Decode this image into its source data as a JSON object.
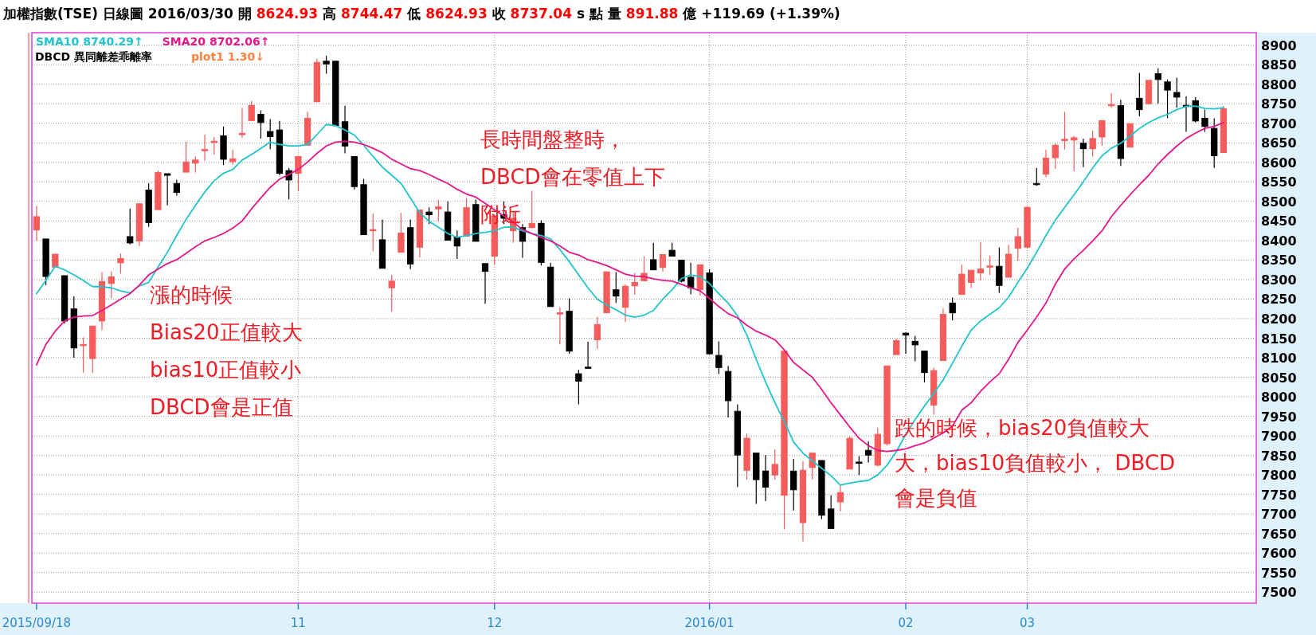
{
  "chart_data": {
    "type": "candlestick",
    "title": "加權指數(TSE) 日線圖 2016/03/30 開 8624.93 高 8744.47 低 8624.93 收 8737.04 s 點 量 891.88 億 +119.69 (+1.39%)",
    "subtitle": "DBCD 異同離差乖離率",
    "annotations": [
      "漲的時候",
      "Bias20正值較大",
      "bias10正值較小",
      "DBCD會是正值",
      "長時間盤整時，",
      "DBCD會在零值上下",
      "附近",
      "跌的時候，bias20負值較大",
      "大，bias10負值較小， DBCD",
      "會是負值",
      "plot1 1.30↓"
    ],
    "categories": [
      "2015/09/18",
      null,
      null,
      null,
      null,
      null,
      null,
      null,
      null,
      null,
      null,
      null,
      null,
      null,
      null,
      null,
      null,
      null,
      null,
      null,
      null,
      null,
      null,
      null,
      null,
      null,
      null,
      null,
      "11",
      null,
      null,
      null,
      null,
      null,
      null,
      null,
      null,
      null,
      null,
      null,
      null,
      null,
      null,
      null,
      null,
      null,
      null,
      null,
      null,
      "12",
      null,
      null,
      null,
      null,
      null,
      null,
      null,
      null,
      null,
      null,
      null,
      null,
      null,
      null,
      null,
      null,
      null,
      null,
      null,
      null,
      null,
      null,
      "2016/01",
      null,
      null,
      null,
      null,
      null,
      null,
      null,
      null,
      null,
      null,
      null,
      null,
      null,
      null,
      null,
      null,
      null,
      null,
      null,
      null,
      "02",
      null,
      null,
      null,
      null,
      null,
      null,
      null,
      null,
      null,
      null,
      null,
      null,
      "03",
      null,
      null,
      null,
      null,
      null,
      null,
      null,
      null,
      null,
      null,
      null,
      null,
      null,
      null,
      null,
      null,
      null,
      null,
      null,
      null,
      null
    ],
    "ohlc": [
      [
        8427,
        8488,
        8399,
        8461
      ],
      [
        8404,
        8404,
        8286,
        8308
      ],
      [
        8332,
        8365,
        8330,
        8365
      ],
      [
        8310,
        8310,
        8187,
        8194
      ],
      [
        8225,
        8257,
        8100,
        8125
      ],
      [
        8132,
        8152,
        8062,
        8134
      ],
      [
        8098,
        8181,
        8061,
        8181
      ],
      [
        8194,
        8319,
        8171,
        8295
      ],
      [
        8290,
        8321,
        8253,
        8307
      ],
      [
        8343,
        8367,
        8315,
        8354
      ],
      [
        8410,
        8482,
        8390,
        8394
      ],
      [
        8399,
        8494,
        8386,
        8494
      ],
      [
        8529,
        8546,
        8435,
        8446
      ],
      [
        8479,
        8579,
        8479,
        8574
      ],
      [
        8571,
        8571,
        8490,
        8567
      ],
      [
        8546,
        8556,
        8515,
        8523
      ],
      [
        8575,
        8652,
        8575,
        8601
      ],
      [
        8598,
        8615,
        8574,
        8606
      ],
      [
        8631,
        8671,
        8604,
        8633
      ],
      [
        8652,
        8665,
        8620,
        8654
      ],
      [
        8668,
        8692,
        8593,
        8608
      ],
      [
        8602,
        8633,
        8594,
        8609
      ],
      [
        8672,
        8740,
        8663,
        8674
      ],
      [
        8707,
        8757,
        8707,
        8746
      ],
      [
        8723,
        8733,
        8661,
        8702
      ],
      [
        8679,
        8711,
        8634,
        8666
      ],
      [
        8683,
        8706,
        8567,
        8572
      ],
      [
        8579,
        8586,
        8505,
        8555
      ],
      [
        8572,
        8615,
        8526,
        8615
      ],
      [
        8644,
        8729,
        8644,
        8713
      ],
      [
        8755,
        8865,
        8755,
        8856
      ],
      [
        8859,
        8873,
        8827,
        8852
      ],
      [
        8859,
        8859,
        8694,
        8694
      ],
      [
        8704,
        8745,
        8623,
        8642
      ],
      [
        8615,
        8615,
        8531,
        8538
      ],
      [
        8543,
        8558,
        8415,
        8415
      ],
      [
        8426,
        8469,
        8373,
        8428
      ],
      [
        8402,
        8454,
        8329,
        8329
      ],
      [
        8279,
        8312,
        8218,
        8296
      ],
      [
        8370,
        8471,
        8370,
        8419
      ],
      [
        8433,
        8454,
        8327,
        8340
      ],
      [
        8383,
        8478,
        8357,
        8478
      ],
      [
        8473,
        8485,
        8442,
        8466
      ],
      [
        8481,
        8504,
        8450,
        8486
      ],
      [
        8473,
        8500,
        8401,
        8401
      ],
      [
        8409,
        8426,
        8353,
        8386
      ],
      [
        8411,
        8509,
        8411,
        8484
      ],
      [
        8492,
        8505,
        8398,
        8398
      ],
      [
        8341,
        8341,
        8238,
        8321
      ],
      [
        8360,
        8463,
        8338,
        8463
      ],
      [
        8466,
        8500,
        8442,
        8457
      ],
      [
        8425,
        8473,
        8394,
        8457
      ],
      [
        8433,
        8442,
        8356,
        8398
      ],
      [
        8433,
        8527,
        8431,
        8444
      ],
      [
        8444,
        8452,
        8336,
        8344
      ],
      [
        8332,
        8343,
        8231,
        8231
      ],
      [
        8213,
        8229,
        8134,
        8215
      ],
      [
        8219,
        8252,
        8110,
        8117
      ],
      [
        8059,
        8069,
        7981,
        8040
      ],
      [
        8076,
        8141,
        8072,
        8074
      ],
      [
        8146,
        8205,
        8123,
        8185
      ],
      [
        8215,
        8320,
        8215,
        8320
      ],
      [
        8274,
        8319,
        8240,
        8258
      ],
      [
        8229,
        8288,
        8192,
        8283
      ],
      [
        8284,
        8317,
        8261,
        8293
      ],
      [
        8297,
        8360,
        8297,
        8316
      ],
      [
        8351,
        8394,
        8325,
        8325
      ],
      [
        8331,
        8364,
        8321,
        8364
      ],
      [
        8375,
        8394,
        8360,
        8360
      ],
      [
        8350,
        8350,
        8293,
        8296
      ],
      [
        8306,
        8343,
        8262,
        8279
      ],
      [
        8274,
        8338,
        8259,
        8338
      ],
      [
        8317,
        8327,
        8108,
        8110
      ],
      [
        8106,
        8142,
        8058,
        8075
      ],
      [
        8065,
        8079,
        7947,
        7990
      ],
      [
        7963,
        7981,
        7769,
        7851
      ],
      [
        7812,
        7906,
        7788,
        7894
      ],
      [
        7856,
        7856,
        7726,
        7788
      ],
      [
        7810,
        7851,
        7733,
        7769
      ],
      [
        7800,
        7865,
        7788,
        7827
      ],
      [
        7748,
        8117,
        7661,
        8117
      ],
      [
        7810,
        7841,
        7709,
        7762
      ],
      [
        7678,
        7835,
        7630,
        7812
      ],
      [
        7819,
        7856,
        7788,
        7856
      ],
      [
        7837,
        7837,
        7687,
        7697
      ],
      [
        7713,
        7748,
        7663,
        7663
      ],
      [
        7731,
        7774,
        7707,
        7755
      ],
      [
        7815,
        7899,
        7815,
        7894
      ],
      [
        7833,
        7848,
        7800,
        7831
      ],
      [
        7863,
        7886,
        7832,
        7851
      ],
      [
        7825,
        7921,
        7822,
        7904
      ],
      [
        7880,
        8079,
        7875,
        8079
      ],
      [
        8108,
        8149,
        8108,
        8144
      ],
      [
        8163,
        8165,
        8110,
        8158
      ],
      [
        8142,
        8156,
        8091,
        8133
      ],
      [
        8117,
        8117,
        8037,
        8062
      ],
      [
        7979,
        8075,
        7954,
        8067
      ],
      [
        8093,
        8226,
        8093,
        8211
      ],
      [
        8240,
        8254,
        8196,
        8215
      ],
      [
        8262,
        8338,
        8262,
        8314
      ],
      [
        8293,
        8324,
        8279,
        8324
      ],
      [
        8317,
        8396,
        8298,
        8327
      ],
      [
        8333,
        8361,
        8312,
        8335
      ],
      [
        8334,
        8382,
        8266,
        8285
      ],
      [
        8306,
        8389,
        8306,
        8365
      ],
      [
        8380,
        8433,
        8348,
        8410
      ],
      [
        8383,
        8488,
        8380,
        8485
      ],
      [
        8546,
        8586,
        8540,
        8544
      ],
      [
        8570,
        8633,
        8562,
        8611
      ],
      [
        8612,
        8649,
        8584,
        8644
      ],
      [
        8658,
        8729,
        8633,
        8659
      ],
      [
        8657,
        8668,
        8577,
        8663
      ],
      [
        8649,
        8661,
        8588,
        8635
      ],
      [
        8635,
        8681,
        8615,
        8661
      ],
      [
        8665,
        8707,
        8642,
        8707
      ],
      [
        8746,
        8777,
        8740,
        8748
      ],
      [
        8745,
        8760,
        8591,
        8610
      ],
      [
        8639,
        8699,
        8639,
        8699
      ],
      [
        8764,
        8829,
        8718,
        8735
      ],
      [
        8750,
        8810,
        8750,
        8810
      ],
      [
        8827,
        8841,
        8750,
        8812
      ],
      [
        8806,
        8812,
        8713,
        8785
      ],
      [
        8779,
        8817,
        8740,
        8767
      ],
      [
        8746,
        8769,
        8678,
        8744
      ],
      [
        8758,
        8767,
        8702,
        8706
      ],
      [
        8713,
        8735,
        8678,
        8692
      ],
      [
        8687,
        8713,
        8586,
        8617
      ],
      [
        8624.93,
        8744.47,
        8624.93,
        8737.04
      ]
    ],
    "colors": [
      "#f45c5c",
      "#000000",
      "#f45c5c",
      "#000000",
      "#000000",
      "#f45c5c",
      "#f45c5c",
      "#f45c5c",
      "#f45c5c",
      "#f45c5c",
      "#000000",
      "#f45c5c",
      "#000000",
      "#f45c5c",
      "#000000",
      "#000000",
      "#f45c5c",
      "#f45c5c",
      "#f45c5c",
      "#f45c5c",
      "#000000",
      "#f45c5c",
      "#f45c5c",
      "#f45c5c",
      "#000000",
      "#000000",
      "#000000",
      "#000000",
      "#f45c5c",
      "#f45c5c",
      "#f45c5c",
      "#000000",
      "#000000",
      "#000000",
      "#000000",
      "#000000",
      "#f45c5c",
      "#000000",
      "#f45c5c",
      "#f45c5c",
      "#000000",
      "#f45c5c",
      "#000000",
      "#f45c5c",
      "#000000",
      "#000000",
      "#f45c5c",
      "#000000",
      "#000000",
      "#f45c5c",
      "#000000",
      "#f45c5c",
      "#000000",
      "#f45c5c",
      "#000000",
      "#000000",
      "#f45c5c",
      "#000000",
      "#000000",
      "#000000",
      "#f45c5c",
      "#f45c5c",
      "#000000",
      "#f45c5c",
      "#f45c5c",
      "#f45c5c",
      "#000000",
      "#f45c5c",
      "#000000",
      "#000000",
      "#000000",
      "#f45c5c",
      "#000000",
      "#000000",
      "#000000",
      "#000000",
      "#f45c5c",
      "#000000",
      "#000000",
      "#f45c5c",
      "#f45c5c",
      "#000000",
      "#f45c5c",
      "#f45c5c",
      "#000000",
      "#000000",
      "#f45c5c",
      "#f45c5c",
      "#000000",
      "#000000",
      "#f45c5c",
      "#f45c5c",
      "#f45c5c",
      "#000000",
      "#000000",
      "#000000",
      "#f45c5c",
      "#f45c5c",
      "#000000",
      "#f45c5c",
      "#f45c5c",
      "#f45c5c",
      "#f45c5c",
      "#000000",
      "#f45c5c",
      "#f45c5c",
      "#f45c5c",
      "#000000",
      "#f45c5c",
      "#f45c5c",
      "#f45c5c",
      "#f45c5c",
      "#000000",
      "#f45c5c",
      "#f45c5c",
      "#f45c5c",
      "#000000",
      "#f45c5c",
      "#000000",
      "#f45c5c",
      "#000000",
      "#000000",
      "#000000",
      "#000000",
      "#000000",
      "#000000",
      "#000000",
      "#f45c5c"
    ],
    "series": [
      {
        "name": "SMA10 8740.29↑",
        "type": "line",
        "color": "#1fc4cc",
        "values": [
          8264,
          8298,
          8334,
          8325,
          8312,
          8298,
          8282,
          8282,
          8279,
          8271,
          8266,
          8284,
          8293,
          8332,
          8370,
          8413,
          8454,
          8490,
          8524,
          8553,
          8572,
          8582,
          8606,
          8620,
          8636,
          8652,
          8646,
          8642,
          8642,
          8646,
          8671,
          8697,
          8694,
          8683,
          8670,
          8644,
          8615,
          8588,
          8567,
          8546,
          8509,
          8471,
          8449,
          8434,
          8418,
          8408,
          8413,
          8418,
          8421,
          8425,
          8434,
          8434,
          8425,
          8418,
          8413,
          8404,
          8377,
          8346,
          8312,
          8279,
          8250,
          8235,
          8223,
          8209,
          8204,
          8209,
          8221,
          8250,
          8274,
          8303,
          8312,
          8308,
          8290,
          8264,
          8240,
          8207,
          8158,
          8096,
          8038,
          7985,
          7937,
          7884,
          7856,
          7836,
          7817,
          7798,
          7774,
          7779,
          7783,
          7786,
          7800,
          7825,
          7860,
          7904,
          7942,
          7976,
          8009,
          8043,
          8086,
          8130,
          8171,
          8194,
          8211,
          8228,
          8255,
          8293,
          8329,
          8370,
          8413,
          8452,
          8485,
          8517,
          8550,
          8586,
          8617,
          8636,
          8649,
          8667,
          8687,
          8702,
          8714,
          8723,
          8735,
          8743,
          8744,
          8738,
          8737,
          8740
        ]
      },
      {
        "name": "SMA20 8702.06↑",
        "type": "line",
        "color": "#e6168a",
        "values": [
          8082,
          8134,
          8168,
          8194,
          8204,
          8207,
          8208,
          8221,
          8235,
          8250,
          8264,
          8286,
          8312,
          8327,
          8341,
          8351,
          8367,
          8384,
          8399,
          8408,
          8418,
          8432,
          8450,
          8481,
          8509,
          8536,
          8557,
          8569,
          8582,
          8601,
          8623,
          8642,
          8652,
          8654,
          8652,
          8646,
          8636,
          8625,
          8608,
          8596,
          8584,
          8579,
          8569,
          8557,
          8546,
          8531,
          8519,
          8511,
          8495,
          8479,
          8463,
          8447,
          8428,
          8418,
          8408,
          8399,
          8386,
          8370,
          8363,
          8351,
          8344,
          8336,
          8325,
          8314,
          8309,
          8308,
          8302,
          8298,
          8296,
          8288,
          8279,
          8271,
          8252,
          8231,
          8213,
          8202,
          8183,
          8168,
          8158,
          8146,
          8120,
          8088,
          8069,
          8050,
          8019,
          7985,
          7954,
          7923,
          7894,
          7875,
          7863,
          7860,
          7863,
          7867,
          7875,
          7882,
          7894,
          7908,
          7925,
          7966,
          7985,
          8014,
          8038,
          8059,
          8096,
          8139,
          8171,
          8204,
          8240,
          8288,
          8327,
          8353,
          8375,
          8399,
          8425,
          8461,
          8490,
          8517,
          8543,
          8567,
          8596,
          8620,
          8642,
          8661,
          8675,
          8687,
          8692,
          8702
        ]
      }
    ],
    "ylim": [
      7472,
      8932
    ],
    "yticks": [
      7500,
      7550,
      7600,
      7650,
      7700,
      7750,
      7800,
      7850,
      7900,
      7950,
      8000,
      8050,
      8100,
      8150,
      8200,
      8250,
      8300,
      8350,
      8400,
      8450,
      8500,
      8550,
      8600,
      8650,
      8700,
      8750,
      8800,
      8850,
      8900
    ],
    "grid": true,
    "legend": "top left"
  }
}
